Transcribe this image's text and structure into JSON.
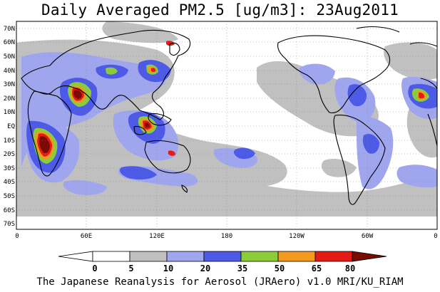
{
  "title": "Daily Averaged PM2.5 [ug/m3]: 23Aug2011",
  "credit": "The Japanese Reanalysis for Aerosol (JRAero) v1.0 MRI/KU_RIAM",
  "lat_labels": [
    "70N",
    "60N",
    "50N",
    "40N",
    "30N",
    "20N",
    "10N",
    "EQ",
    "10S",
    "20S",
    "30S",
    "40S",
    "50S",
    "60S",
    "70S"
  ],
  "lon_labels": [
    "0",
    "60E",
    "120E",
    "180",
    "120W",
    "60W",
    "0"
  ],
  "colorbar": {
    "labels": [
      "0",
      "5",
      "10",
      "20",
      "35",
      "50",
      "65",
      "80"
    ],
    "colors": [
      "#ffffff",
      "#c0c0c0",
      "#a0a6ee",
      "#4c5ae6",
      "#8ccc3a",
      "#f39a1e",
      "#e41a14",
      "#7a0a04"
    ]
  },
  "map_colors": {
    "gray": "#c0c0c0",
    "light_blue": "#a0a6ee",
    "blue": "#4c5ae6",
    "green": "#8ccc3a",
    "orange": "#f39a1e",
    "red": "#e41a14",
    "dark_red": "#7a0a04"
  }
}
